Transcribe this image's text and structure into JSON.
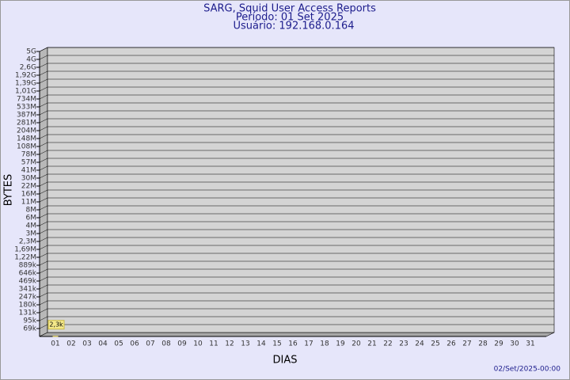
{
  "chart_data": {
    "type": "bar",
    "title": "SARG, Squid User Access Reports",
    "subtitle": "Período: 01 Set 2025",
    "subtitle2": "Usuário: 192.168.0.164",
    "x_label": "DIAS",
    "y_label": "BYTES",
    "footer": "02/Set/2025-00:00",
    "categories": [
      "01",
      "02",
      "03",
      "04",
      "05",
      "06",
      "07",
      "08",
      "09",
      "10",
      "11",
      "12",
      "13",
      "14",
      "15",
      "16",
      "17",
      "18",
      "19",
      "20",
      "21",
      "22",
      "23",
      "24",
      "25",
      "26",
      "27",
      "28",
      "29",
      "30",
      "31"
    ],
    "values": [
      2300,
      null,
      null,
      null,
      null,
      null,
      null,
      null,
      null,
      null,
      null,
      null,
      null,
      null,
      null,
      null,
      null,
      null,
      null,
      null,
      null,
      null,
      null,
      null,
      null,
      null,
      null,
      null,
      null,
      null,
      null
    ],
    "value_labels": [
      "2,3k",
      null,
      null,
      null,
      null,
      null,
      null,
      null,
      null,
      null,
      null,
      null,
      null,
      null,
      null,
      null,
      null,
      null,
      null,
      null,
      null,
      null,
      null,
      null,
      null,
      null,
      null,
      null,
      null,
      null,
      null
    ],
    "color": "#f5e98a",
    "ylim": [
      0,
      5000000000
    ],
    "yticks": [
      {
        "value": 69000,
        "label": "69k"
      },
      {
        "value": 95000,
        "label": "95k"
      },
      {
        "value": 131000,
        "label": "131k"
      },
      {
        "value": 180000,
        "label": "180k"
      },
      {
        "value": 247000,
        "label": "247k"
      },
      {
        "value": 341000,
        "label": "341k"
      },
      {
        "value": 469000,
        "label": "469k"
      },
      {
        "value": 646000,
        "label": "646k"
      },
      {
        "value": 889000,
        "label": "889k"
      },
      {
        "value": 1220000,
        "label": "1,22M"
      },
      {
        "value": 1690000,
        "label": "1,69M"
      },
      {
        "value": 2300000,
        "label": "2,3M"
      },
      {
        "value": 3000000,
        "label": "3M"
      },
      {
        "value": 4000000,
        "label": "4M"
      },
      {
        "value": 6000000,
        "label": "6M"
      },
      {
        "value": 8000000,
        "label": "8M"
      },
      {
        "value": 11000000,
        "label": "11M"
      },
      {
        "value": 16000000,
        "label": "16M"
      },
      {
        "value": 22000000,
        "label": "22M"
      },
      {
        "value": 30000000,
        "label": "30M"
      },
      {
        "value": 41000000,
        "label": "41M"
      },
      {
        "value": 57000000,
        "label": "57M"
      },
      {
        "value": 78000000,
        "label": "78M"
      },
      {
        "value": 108000000,
        "label": "108M"
      },
      {
        "value": 148000000,
        "label": "148M"
      },
      {
        "value": 204000000,
        "label": "204M"
      },
      {
        "value": 281000000,
        "label": "281M"
      },
      {
        "value": 387000000,
        "label": "387M"
      },
      {
        "value": 533000000,
        "label": "533M"
      },
      {
        "value": 734000000,
        "label": "734M"
      },
      {
        "value": 1010000000,
        "label": "1,01G"
      },
      {
        "value": 1390000000,
        "label": "1,39G"
      },
      {
        "value": 1920000000,
        "label": "1,92G"
      },
      {
        "value": 2600000000,
        "label": "2,6G"
      },
      {
        "value": 4000000000,
        "label": "4G"
      },
      {
        "value": 5000000000,
        "label": "5G"
      }
    ],
    "grid": true
  }
}
